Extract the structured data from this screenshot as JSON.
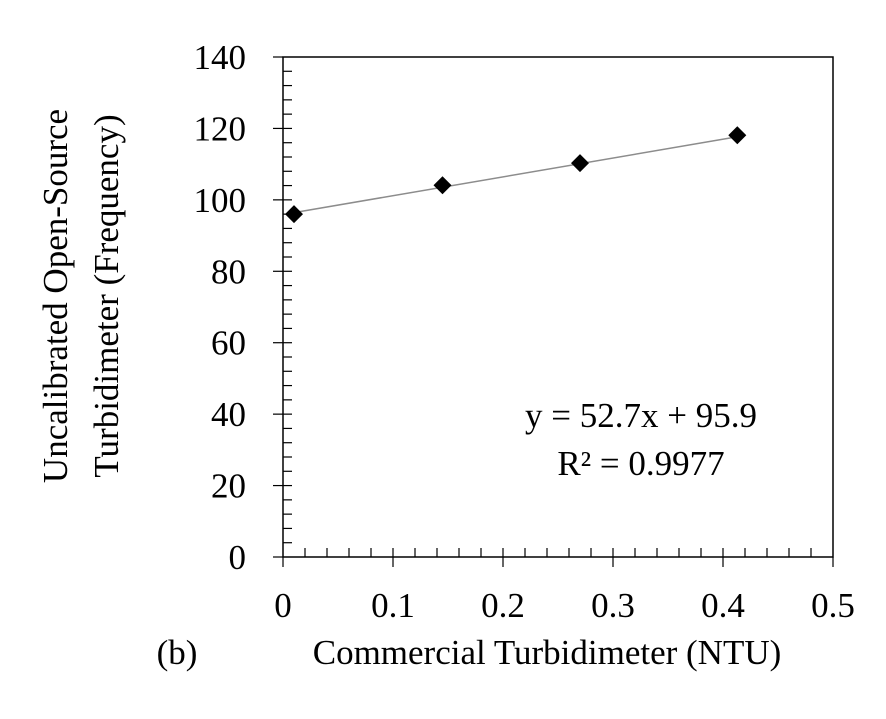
{
  "chart_data": {
    "type": "scatter",
    "panel_label": "(b)",
    "xlabel": "Commercial Turbidimeter (NTU)",
    "ylabel_lines": [
      "Uncalibrated Open-Source",
      "Turbidimeter (Frequency)"
    ],
    "xlim": [
      0,
      0.5
    ],
    "ylim": [
      0,
      140
    ],
    "x_ticks": [
      0,
      0.1,
      0.2,
      0.3,
      0.4,
      0.5
    ],
    "x_tick_labels": [
      "0",
      "0.1",
      "0.2",
      "0.3",
      "0.4",
      "0.5"
    ],
    "y_ticks": [
      0,
      20,
      40,
      60,
      80,
      100,
      120,
      140
    ],
    "y_tick_labels": [
      "0",
      "20",
      "40",
      "60",
      "80",
      "100",
      "120",
      "140"
    ],
    "minor_tick_step_x": 0.02,
    "minor_tick_step_y": 4,
    "grid": false,
    "legend": "none",
    "series": [
      {
        "marker": "diamond",
        "color": "#000000",
        "points": [
          {
            "x": 0.01,
            "y": 96.0
          },
          {
            "x": 0.145,
            "y": 104.1
          },
          {
            "x": 0.27,
            "y": 110.3
          },
          {
            "x": 0.413,
            "y": 118.1
          }
        ]
      }
    ],
    "trendline": {
      "slope": 52.7,
      "intercept": 95.9,
      "x_range": [
        0.01,
        0.413
      ],
      "color": "#8c8c8c"
    },
    "annotations": {
      "equation": "y = 52.7x + 95.9",
      "r_squared": "R² = 0.9977"
    }
  }
}
